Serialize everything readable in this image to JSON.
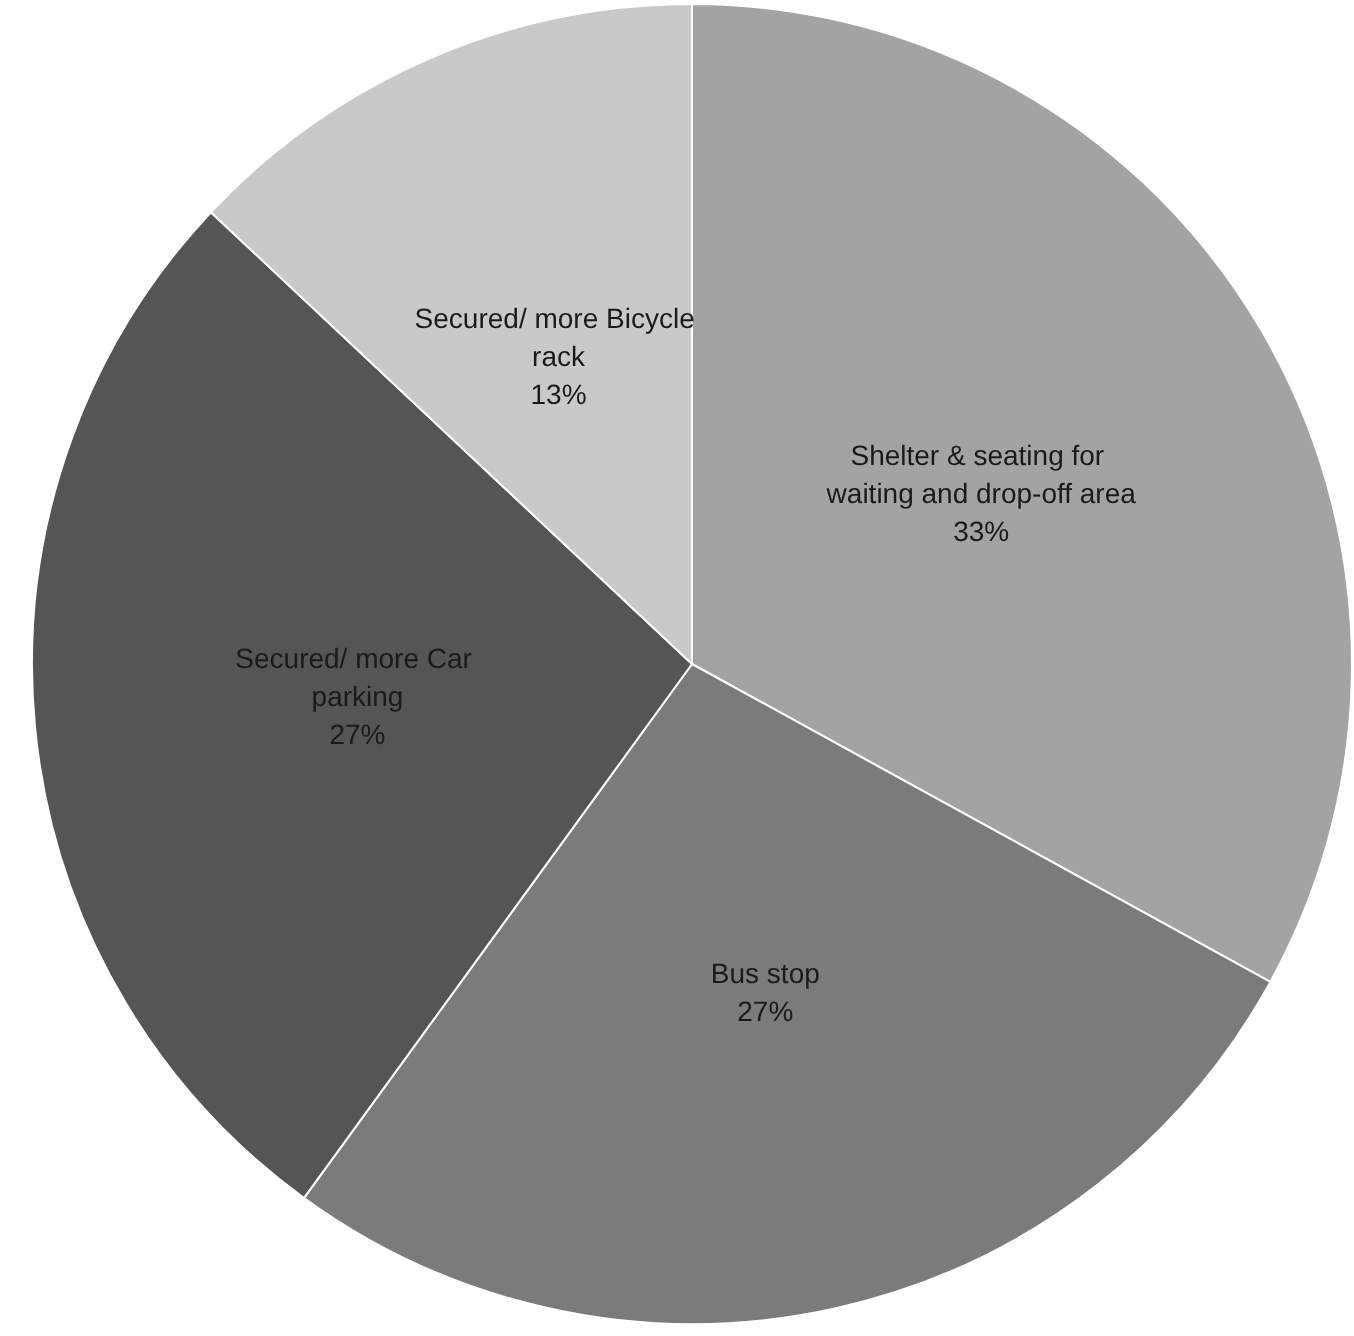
{
  "chart_data": {
    "type": "pie",
    "categories": [
      "Shelter & seating for waiting and drop-off area",
      "Bus stop",
      "Secured/ more Car parking",
      "Secured/ more Bicycle rack"
    ],
    "values": [
      33,
      27,
      27,
      13
    ],
    "value_labels": [
      "33%",
      "27%",
      "27%",
      "13%"
    ],
    "colors": [
      "#a3a3a3",
      "#7b7b7b",
      "#555555",
      "#c9c9c9"
    ],
    "legend": false
  }
}
